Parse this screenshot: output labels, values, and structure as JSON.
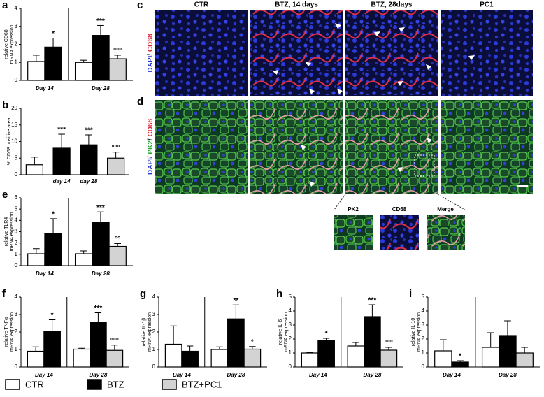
{
  "images": {
    "panels": [
      "c",
      "d"
    ],
    "columns": [
      "CTR",
      "BTZ, 14 days",
      "BTZ, 28days",
      "PC1"
    ],
    "row_labels": [
      [
        "DAPI",
        "/ ",
        "CD68"
      ],
      [
        "DAPI",
        "/ ",
        "PK2",
        "/ ",
        "CD68"
      ]
    ],
    "insets": [
      "PK2",
      "CD68",
      "Merge"
    ]
  },
  "chart_data": [
    {
      "type": "bar",
      "panel": "a",
      "ylabel": [
        "relative CD68",
        "mRNA expression"
      ],
      "categories": [
        "Day 14",
        "Day 28"
      ],
      "ylim": [
        0,
        4
      ],
      "yticks": [
        0,
        1,
        2,
        3,
        4
      ],
      "series": [
        {
          "name": "CTR",
          "color": "#ffffff",
          "values": [
            1.05,
            1.0
          ],
          "errors": [
            0.35,
            0.12
          ],
          "significance": [
            null,
            null
          ]
        },
        {
          "name": "BTZ",
          "color": "#000000",
          "values": [
            1.85,
            2.5
          ],
          "errors": [
            0.5,
            0.55
          ],
          "significance": [
            "*",
            "***"
          ]
        },
        {
          "name": "BTZ+PC1",
          "color": "#d3d3d3",
          "values": [
            null,
            1.2
          ],
          "errors": [
            null,
            0.2
          ],
          "significance": [
            null,
            "°°°"
          ]
        }
      ]
    },
    {
      "type": "bar",
      "panel": "b",
      "ylabel": [
        "% CD68 positive area"
      ],
      "categories": [
        null,
        "day 14",
        "day 28",
        null
      ],
      "ylim": [
        0,
        20
      ],
      "yticks": [
        0,
        5,
        10,
        15,
        20
      ],
      "values": [
        3,
        8,
        9,
        5
      ],
      "errors": [
        2.3,
        4.2,
        3,
        1.8
      ],
      "colors": [
        "#ffffff",
        "#000000",
        "#000000",
        "#d3d3d3"
      ],
      "significance": [
        null,
        "***",
        "***",
        "°°°"
      ]
    },
    {
      "type": "bar",
      "panel": "e",
      "ylabel": [
        "relative TLR4",
        "mRNA expression"
      ],
      "categories": [
        "Day 14",
        "Day 28"
      ],
      "ylim": [
        0,
        6
      ],
      "yticks": [
        0,
        1,
        2,
        3,
        4,
        5,
        6
      ],
      "series": [
        {
          "name": "CTR",
          "color": "#ffffff",
          "values": [
            1.05,
            1.05
          ],
          "errors": [
            0.45,
            0.25
          ],
          "significance": [
            null,
            null
          ]
        },
        {
          "name": "BTZ",
          "color": "#000000",
          "values": [
            2.85,
            3.85
          ],
          "errors": [
            1.3,
            0.9
          ],
          "significance": [
            "*",
            "***"
          ]
        },
        {
          "name": "BTZ+PC1",
          "color": "#d3d3d3",
          "values": [
            null,
            1.7
          ],
          "errors": [
            null,
            0.25
          ],
          "significance": [
            null,
            "°°"
          ]
        }
      ]
    },
    {
      "type": "bar",
      "panel": "f",
      "ylabel": [
        "relative TNFα",
        "mRNA expression"
      ],
      "categories": [
        "Day 14",
        "Day 28"
      ],
      "ylim": [
        0,
        4
      ],
      "yticks": [
        0,
        1,
        2,
        3,
        4
      ],
      "series": [
        {
          "name": "CTR",
          "color": "#ffffff",
          "values": [
            0.9,
            1.02
          ],
          "errors": [
            0.25,
            0.05
          ],
          "significance": [
            null,
            null
          ]
        },
        {
          "name": "BTZ",
          "color": "#000000",
          "values": [
            2.05,
            2.55
          ],
          "errors": [
            0.65,
            0.55
          ],
          "significance": [
            "*",
            "***"
          ]
        },
        {
          "name": "BTZ+PC1",
          "color": "#d3d3d3",
          "values": [
            null,
            0.95
          ],
          "errors": [
            null,
            0.3
          ],
          "significance": [
            null,
            "°°°"
          ]
        }
      ]
    },
    {
      "type": "bar",
      "panel": "g",
      "ylabel": [
        "relative IL-1β",
        "mRNA expression"
      ],
      "categories": [
        "Day 14",
        "Day 28"
      ],
      "ylim": [
        0,
        4
      ],
      "yticks": [
        0,
        1,
        2,
        3,
        4
      ],
      "series": [
        {
          "name": "CTR",
          "color": "#ffffff",
          "values": [
            1.3,
            1.0
          ],
          "errors": [
            1.05,
            0.15
          ],
          "significance": [
            null,
            null
          ]
        },
        {
          "name": "BTZ",
          "color": "#000000",
          "values": [
            0.9,
            2.75
          ],
          "errors": [
            0.3,
            0.8
          ],
          "significance": [
            null,
            "**"
          ]
        },
        {
          "name": "BTZ+PC1",
          "color": "#d3d3d3",
          "values": [
            null,
            1.02
          ],
          "errors": [
            null,
            0.15
          ],
          "significance": [
            null,
            "°"
          ]
        }
      ]
    },
    {
      "type": "bar",
      "panel": "h",
      "ylabel": [
        "relative IL-6",
        "mRNA expression"
      ],
      "categories": [
        "Day 14",
        "Day 28"
      ],
      "ylim": [
        0,
        5
      ],
      "yticks": [
        0,
        1,
        2,
        3,
        4,
        5
      ],
      "series": [
        {
          "name": "CTR",
          "color": "#ffffff",
          "values": [
            1.0,
            1.5
          ],
          "errors": [
            0.05,
            0.25
          ],
          "significance": [
            null,
            null
          ]
        },
        {
          "name": "BTZ",
          "color": "#000000",
          "values": [
            1.9,
            3.6
          ],
          "errors": [
            0.15,
            0.85
          ],
          "significance": [
            "*",
            "***"
          ]
        },
        {
          "name": "BTZ+PC1",
          "color": "#d3d3d3",
          "values": [
            null,
            1.2
          ],
          "errors": [
            null,
            0.2
          ],
          "significance": [
            null,
            "°°°"
          ]
        }
      ]
    },
    {
      "type": "bar",
      "panel": "i",
      "ylabel": [
        "relative IL-10",
        "mRNA expression"
      ],
      "categories": [
        "Day 14",
        "Day 28"
      ],
      "ylim": [
        0,
        5
      ],
      "yticks": [
        0,
        1,
        2,
        3,
        4,
        5
      ],
      "series": [
        {
          "name": "CTR",
          "color": "#ffffff",
          "values": [
            1.15,
            1.4
          ],
          "errors": [
            0.8,
            1.05
          ],
          "significance": [
            null,
            null
          ]
        },
        {
          "name": "BTZ",
          "color": "#000000",
          "values": [
            0.35,
            2.2
          ],
          "errors": [
            0.1,
            1.1
          ],
          "significance": [
            "*",
            null
          ]
        },
        {
          "name": "BTZ+PC1",
          "color": "#d3d3d3",
          "values": [
            null,
            1.0
          ],
          "errors": [
            null,
            0.4
          ],
          "significance": [
            null,
            null
          ]
        }
      ]
    }
  ]
}
